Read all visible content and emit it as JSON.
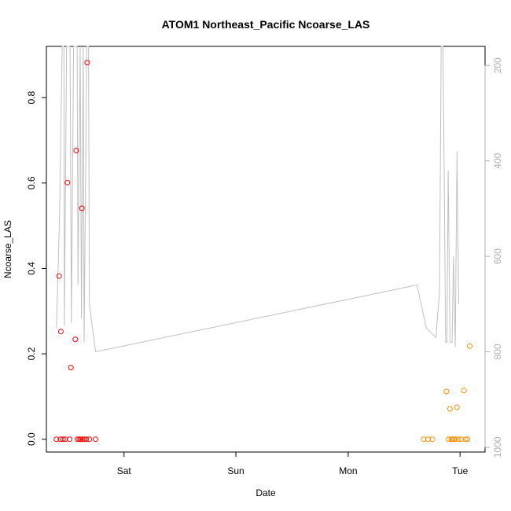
{
  "chart_data": {
    "type": "scatter",
    "title": "ATOM1 Northeast_Pacific Ncoarse_LAS",
    "xlabel": "Date",
    "ylabel": "Ncoarse_LAS",
    "xlim": [
      0,
      100
    ],
    "ylim": [
      -0.03,
      0.92
    ],
    "x_ticks": [
      {
        "label": "Sat",
        "value": 17.7
      },
      {
        "label": "Sun",
        "value": 43.2
      },
      {
        "label": "Mon",
        "value": 68.8
      },
      {
        "label": "Tue",
        "value": 94.3
      }
    ],
    "y_ticks": [
      {
        "label": "0.0",
        "value": 0.0
      },
      {
        "label": "0.2",
        "value": 0.2
      },
      {
        "label": "0.4",
        "value": 0.4
      },
      {
        "label": "0.6",
        "value": 0.6
      },
      {
        "label": "0.8",
        "value": 0.8
      }
    ],
    "right_axis": {
      "reversed": true,
      "lim": [
        160,
        1010
      ],
      "ticks": [
        {
          "label": "200",
          "value": 200
        },
        {
          "label": "400",
          "value": 400
        },
        {
          "label": "600",
          "value": 600
        },
        {
          "label": "800",
          "value": 800
        },
        {
          "label": "1000",
          "value": 1000
        }
      ]
    },
    "colors": {
      "series_1": "#ff0000",
      "series_2": "#ff8c00",
      "profile": "#c0c0c0",
      "axis": "#000000",
      "right_axis": "#b0b0b0"
    },
    "series": [
      {
        "color": "#ff0000",
        "points": [
          [
            2.3,
            0.0
          ],
          [
            2.9,
            0.382
          ],
          [
            3.2,
            0.0
          ],
          [
            3.3,
            0.252
          ],
          [
            3.8,
            0.0
          ],
          [
            4.3,
            0.0
          ],
          [
            4.8,
            0.601
          ],
          [
            5.3,
            0.0
          ],
          [
            5.6,
            0.168
          ],
          [
            6.6,
            0.234
          ],
          [
            6.8,
            0.676
          ],
          [
            7.1,
            0.0
          ],
          [
            7.5,
            0.0
          ],
          [
            7.8,
            0.0
          ],
          [
            8.1,
            0.541
          ],
          [
            8.3,
            0.0
          ],
          [
            8.7,
            0.0
          ],
          [
            9.1,
            0.0
          ],
          [
            9.3,
            0.882
          ],
          [
            9.8,
            0.0
          ],
          [
            11.2,
            0.0
          ]
        ]
      },
      {
        "color": "#ff8c00",
        "points": [
          [
            86.0,
            0.0
          ],
          [
            87.0,
            0.0
          ],
          [
            88.0,
            0.0
          ],
          [
            91.2,
            0.112
          ],
          [
            91.7,
            0.0
          ],
          [
            92.0,
            0.071
          ],
          [
            92.3,
            0.0
          ],
          [
            92.6,
            0.0
          ],
          [
            92.9,
            0.0
          ],
          [
            93.3,
            0.0
          ],
          [
            93.6,
            0.075
          ],
          [
            94.0,
            0.0
          ],
          [
            94.6,
            0.0
          ],
          [
            95.2,
            0.114
          ],
          [
            95.6,
            0.0
          ],
          [
            96.0,
            0.0
          ],
          [
            96.5,
            0.218
          ]
        ]
      }
    ],
    "profile_line": [
      [
        2.3,
        750
      ],
      [
        3.0,
        520
      ],
      [
        3.6,
        150
      ],
      [
        4.0,
        150
      ],
      [
        4.1,
        745
      ],
      [
        4.6,
        150
      ],
      [
        5.4,
        150
      ],
      [
        5.7,
        740
      ],
      [
        6.2,
        150
      ],
      [
        7.0,
        150
      ],
      [
        7.2,
        660
      ],
      [
        7.7,
        150
      ],
      [
        8.0,
        730
      ],
      [
        8.4,
        150
      ],
      [
        8.6,
        780
      ],
      [
        9.2,
        150
      ],
      [
        9.6,
        150
      ],
      [
        9.8,
        700
      ],
      [
        11.2,
        800
      ],
      [
        84.5,
        660
      ],
      [
        86.6,
        750
      ],
      [
        88.8,
        770
      ],
      [
        89.3,
        710
      ],
      [
        89.6,
        680
      ],
      [
        90.0,
        150
      ],
      [
        90.4,
        160
      ],
      [
        90.7,
        440
      ],
      [
        91.0,
        780
      ],
      [
        91.3,
        780
      ],
      [
        91.6,
        420
      ],
      [
        92.0,
        780
      ],
      [
        92.5,
        780
      ],
      [
        92.8,
        600
      ],
      [
        93.2,
        790
      ],
      [
        93.6,
        380
      ],
      [
        94.0,
        700
      ]
    ]
  }
}
